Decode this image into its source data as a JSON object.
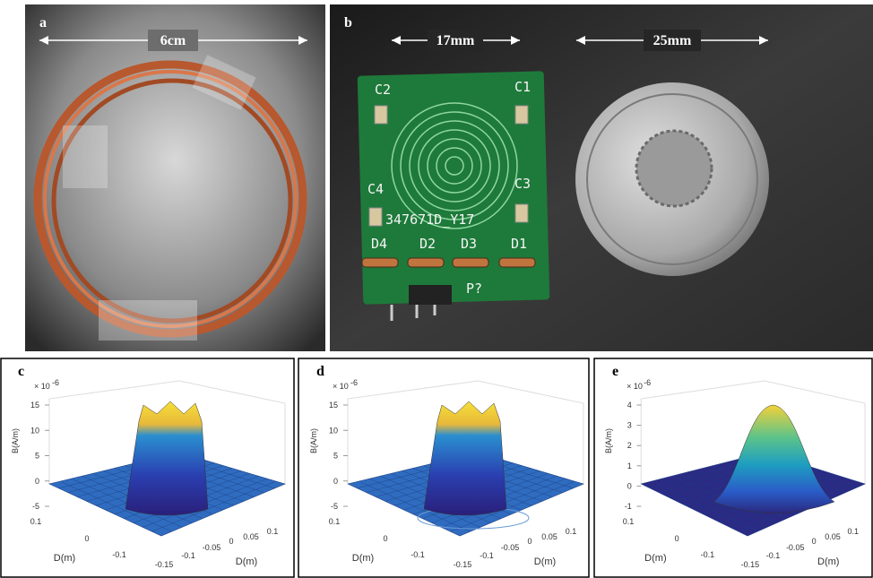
{
  "panels": {
    "a": {
      "label": "a",
      "scale": "6cm"
    },
    "b": {
      "label": "b",
      "pcb_scale": "17mm",
      "coin_scale": "25mm",
      "silkscreen": [
        "C2",
        "C1",
        "C4",
        "C3",
        "347671D_Y17",
        "D4",
        "D2",
        "D3",
        "D1",
        "P?"
      ]
    }
  },
  "plots": [
    {
      "label": "c",
      "z_label": "B(A/m)",
      "multiplier": "× 10",
      "exponent": "-6",
      "zticks": [
        15,
        10,
        5,
        0,
        -5
      ],
      "x_label": "D(m)",
      "y_label": "D(m)",
      "xticks": [
        -0.15,
        -0.1,
        -0.05,
        0,
        0.05,
        0.1
      ],
      "yticks": [
        0.1,
        0,
        -0.1
      ]
    },
    {
      "label": "d",
      "z_label": "B(A/m)",
      "multiplier": "× 10",
      "exponent": "-6",
      "zticks": [
        15,
        10,
        5,
        0,
        -5
      ],
      "x_label": "D(m)",
      "y_label": "D(m)",
      "xticks": [
        -0.15,
        -0.1,
        -0.05,
        0,
        0.05,
        0.1
      ],
      "yticks": [
        0.1,
        0,
        -0.1
      ]
    },
    {
      "label": "e",
      "z_label": "B(A/m)",
      "multiplier": "× 10",
      "exponent": "-6",
      "zticks": [
        4,
        3,
        2,
        1,
        0,
        -1
      ],
      "x_label": "D(m)",
      "y_label": "D(m)",
      "xticks": [
        -0.15,
        -0.1,
        -0.05,
        0,
        0.05,
        0.1
      ],
      "yticks": [
        0.1,
        0,
        -0.1
      ]
    }
  ]
}
